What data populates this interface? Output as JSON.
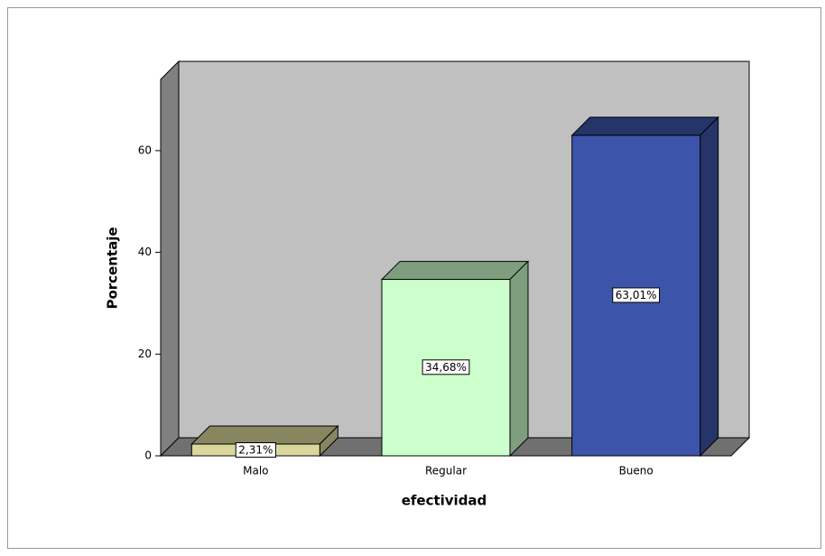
{
  "chart_data": {
    "type": "bar3d",
    "categories": [
      "Malo",
      "Regular",
      "Bueno"
    ],
    "values": [
      2.31,
      34.68,
      63.01
    ],
    "value_labels": [
      "2,31%",
      "34,68%",
      "63,01%"
    ],
    "colors": [
      "#dbd79c",
      "#ccffcc",
      "#3c55aa"
    ],
    "xlabel": "efectividad",
    "ylabel": "Porcentaje",
    "ylim": [
      0,
      74
    ],
    "yticks": [
      0,
      20,
      40,
      60
    ]
  }
}
